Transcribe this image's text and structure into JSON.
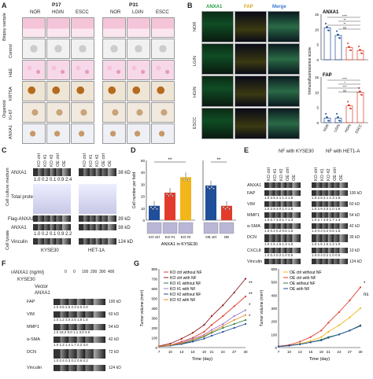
{
  "panels": [
    "A",
    "B",
    "C",
    "D",
    "E",
    "F",
    "G"
  ],
  "A": {
    "groups": [
      "P17",
      "P31"
    ],
    "cols_p17": [
      "NOR",
      "HGIN",
      "ESCC"
    ],
    "cols_p31": [
      "NOR",
      "LGIN",
      "ESCC"
    ],
    "rows": [
      "Biopsy sample",
      "Control",
      "H&E",
      "KRT6A",
      "Ki-67",
      "ANXA1"
    ],
    "organoid_label": "Organoid"
  },
  "B": {
    "channels": [
      "ANXA1",
      "FAP",
      "Merge"
    ],
    "rows": [
      "NOR",
      "LGIN",
      "HGIN",
      "ESCC"
    ],
    "ylabel": "Immunofluorescence score",
    "categories": [
      "NOR",
      "LGIN",
      "HGIN",
      "ESCC"
    ]
  },
  "C": {
    "top_label": "Cell culture medium",
    "bottom_label": "Cell lysate",
    "lanes": [
      "KO ctrl",
      "KO #1",
      "KO #2",
      "OE ctrl",
      "OE"
    ],
    "lanes_het": [
      "KO ctrl",
      "KO #1",
      "KO #2",
      "OE ctrl",
      "OE"
    ],
    "rows": [
      "ANXA1",
      "Total protein",
      "Flag-ANXA1",
      "ANXA1",
      "Vinculin"
    ],
    "mw": [
      "38 kD",
      "39 kD",
      "38 kD",
      "124 kD"
    ],
    "quant1": "1.0  0.2  0.1  0.9  2.4",
    "quant2": "1.0  0.2  0.1  0.9  2.2",
    "cells": [
      "KYSE30",
      "HET-1A"
    ]
  },
  "D": {
    "ylabel": "Cell number per field",
    "xlabel": "ANXA1 in KYSE30",
    "sig1": "**",
    "sig2": "**"
  },
  "E": {
    "headers": [
      "NF with KYSE30",
      "NF with HET1-A"
    ],
    "lanes": [
      "KO ctrl",
      "KO #1",
      "KO #2",
      "OE ctrl",
      "OE"
    ],
    "rows": [
      "ANXA1",
      "FAP",
      "VIM",
      "MMP1",
      "α-SMA",
      "DCN",
      "CXCL8",
      "Vinculin"
    ],
    "mw": [
      "100 kD",
      "60 kD",
      "54 kD",
      "42 kD",
      "36 kD",
      "10 kD",
      "124 kD"
    ],
    "q": [
      "1.0 2.5 2.1 1.3 1.6",
      "1.0 2.9 3.0 1.0 1.6",
      "1.0 2.7 3.0 1.7 1.3",
      "1.0 0.4 0.2 0.6 1.5",
      "1.0 1.5 1.5 1.3 1.0",
      "1.0 0.4 0.2 1.0 0.5"
    ]
  },
  "F": {
    "dose_label": "rANXA1 (ng/ml)",
    "doses": [
      "0",
      "0",
      "100",
      "200",
      "300",
      "400"
    ],
    "rows_top": [
      "KYSE30",
      "Vector",
      "ANXA1"
    ],
    "rows": [
      "FAP",
      "VIM",
      "MMP1",
      "α-SMA",
      "DCN",
      "Vinculin"
    ],
    "mw": [
      "100 kD",
      "60 kD",
      "54 kD",
      "42 kD",
      "72 kD",
      "124 kD"
    ],
    "q": [
      "1.0 3.5 2.5 2.3 2.0 2.0",
      "1.0 1.2 3.0 2.5 1.8 1.5",
      "1.0 18.2 9.0 1.1 3.0 4.0",
      "1.0 1.2 1.4 1.7 2.2 3.0",
      "1.0 0.4 0.3 0.2 0.6 0.2"
    ]
  },
  "chart_data": [
    {
      "type": "scatter",
      "title": "ANXA1",
      "ylabel": "Immunofluorescence score",
      "categories": [
        "NOR",
        "LGIN",
        "HGIN",
        "ESCC"
      ],
      "series": [
        {
          "values": [
            10.5,
            8.0,
            4.0,
            3.0
          ]
        }
      ],
      "ylim": [
        0,
        15
      ],
      "sig": [
        "****",
        "**",
        "**",
        "ns"
      ]
    },
    {
      "type": "scatter",
      "title": "FAP",
      "ylabel": "Immunofluorescence score",
      "categories": [
        "NOR",
        "LGIN",
        "HGIN",
        "ESCC"
      ],
      "series": [
        {
          "values": [
            1.5,
            1.5,
            5.5,
            10.0
          ]
        }
      ],
      "ylim": [
        0,
        15
      ],
      "sig": [
        "****",
        "*",
        "***",
        "ns"
      ]
    },
    {
      "type": "bar",
      "ylabel": "Cell number per field",
      "xlabel": "ANXA1 in KYSE30",
      "categories": [
        "KO ctrl",
        "KO #1",
        "KO #2",
        "OE ctrl",
        "OE"
      ],
      "values": [
        12,
        23,
        36,
        29,
        12
      ],
      "colors": [
        "#1f4e9a",
        "#e23b2b",
        "#f2b61b",
        "#1f4e9a",
        "#e23b2b"
      ],
      "ylim": [
        0,
        50
      ],
      "sig": [
        "**",
        "**"
      ]
    },
    {
      "type": "line",
      "xlabel": "Time (day)",
      "ylabel": "Tumor volume (mm³)",
      "x": [
        7,
        10,
        13,
        16,
        19,
        21,
        24,
        27,
        30
      ],
      "ylim": [
        0,
        800
      ],
      "series": [
        {
          "name": "KO ctrl without NF",
          "values": [
            10,
            25,
            60,
            100,
            160,
            230,
            320,
            420,
            520
          ],
          "color": "#e23b2b"
        },
        {
          "name": "KO ctrl with NF",
          "values": [
            15,
            40,
            90,
            150,
            230,
            320,
            430,
            560,
            700
          ],
          "color": "#8a1c1c"
        },
        {
          "name": "KO #1 without NF",
          "values": [
            10,
            20,
            40,
            70,
            110,
            150,
            200,
            240,
            280
          ],
          "color": "#2d7d3c"
        },
        {
          "name": "KO #1 with NF",
          "values": [
            10,
            25,
            50,
            90,
            130,
            180,
            240,
            320,
            380
          ],
          "color": "#9a7bd0"
        },
        {
          "name": "KO #2 without NF",
          "values": [
            10,
            20,
            35,
            60,
            90,
            120,
            160,
            200,
            240
          ],
          "color": "#1f4e9a"
        },
        {
          "name": "KO #2 with NF",
          "values": [
            12,
            25,
            45,
            80,
            120,
            160,
            220,
            280,
            330
          ],
          "color": "#e58a2e"
        }
      ],
      "sig": [
        "**",
        "**",
        "*",
        "*"
      ]
    },
    {
      "type": "line",
      "xlabel": "Time (day)",
      "ylabel": "Tumor volume (mm³)",
      "x": [
        7,
        10,
        13,
        16,
        19,
        21,
        24,
        27,
        30
      ],
      "ylim": [
        0,
        600
      ],
      "series": [
        {
          "name": "OE ctrl without NF",
          "values": [
            8,
            15,
            30,
            50,
            80,
            120,
            170,
            230,
            300
          ],
          "color": "#f2b61b"
        },
        {
          "name": "OE ctrl with NF",
          "values": [
            10,
            20,
            45,
            80,
            130,
            190,
            270,
            360,
            460
          ],
          "color": "#e23b2b"
        },
        {
          "name": "OE without NF",
          "values": [
            8,
            15,
            25,
            40,
            60,
            80,
            100,
            130,
            170
          ],
          "color": "#2d7d3c"
        },
        {
          "name": "OE with NF",
          "values": [
            8,
            15,
            25,
            40,
            55,
            75,
            100,
            130,
            165
          ],
          "color": "#1f4e9a"
        }
      ],
      "sig": [
        "*",
        "ns"
      ]
    }
  ]
}
